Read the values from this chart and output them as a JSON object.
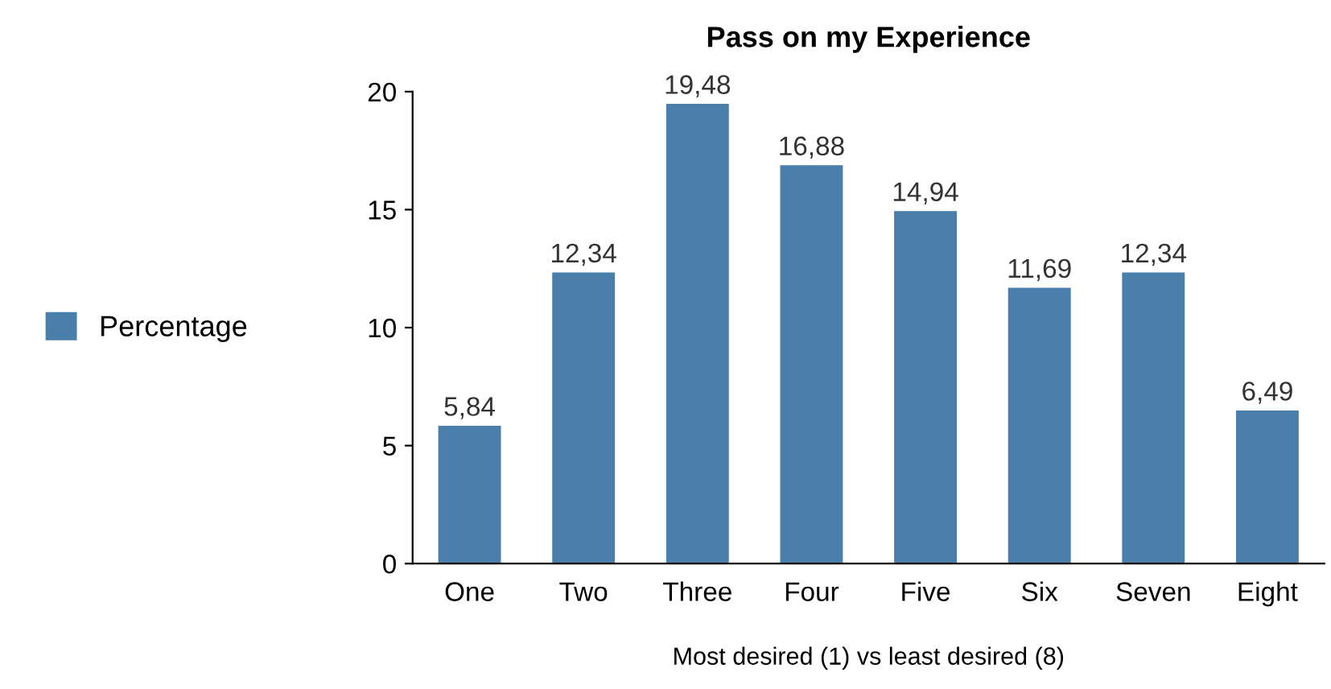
{
  "chart_data": {
    "type": "bar",
    "title": "Pass on my Experience",
    "xlabel": "Most desired (1) vs least desired (8)",
    "categories": [
      "One",
      "Two",
      "Three",
      "Four",
      "Five",
      "Six",
      "Seven",
      "Eight"
    ],
    "series": [
      {
        "name": "Percentage",
        "color": "#4a7fac",
        "values": [
          5.84,
          12.34,
          19.48,
          16.88,
          14.94,
          11.69,
          12.34,
          6.49
        ],
        "value_labels": [
          "5,84",
          "12,34",
          "19,48",
          "16,88",
          "14,94",
          "11,69",
          "12,34",
          "6,49"
        ]
      }
    ],
    "ylim": [
      0,
      20
    ],
    "yticks": [
      0,
      5,
      10,
      15,
      20
    ],
    "grid": false,
    "legend": "left"
  }
}
